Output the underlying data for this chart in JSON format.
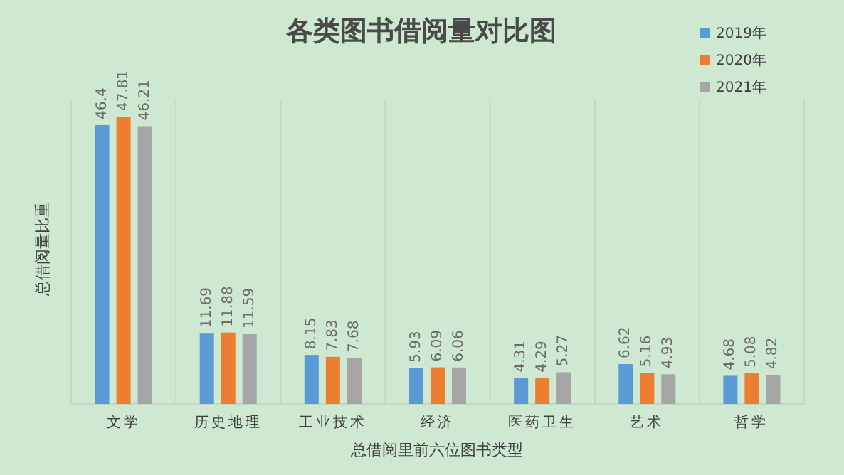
{
  "chart_data": {
    "type": "bar",
    "title": "各类图书借阅量对比图",
    "xlabel": "总借阅里前六位图书类型",
    "ylabel": "总借阅量比重",
    "categories": [
      "文学",
      "历史地理",
      "工业技术",
      "经济",
      "医药卫生",
      "艺术",
      "哲学"
    ],
    "series": [
      {
        "name": "2019年",
        "color": "#5b9bd5",
        "values": [
          46.4,
          11.69,
          8.15,
          5.93,
          4.31,
          6.62,
          4.68
        ]
      },
      {
        "name": "2020年",
        "color": "#ed7d31",
        "values": [
          47.81,
          11.88,
          7.83,
          6.09,
          4.29,
          5.16,
          5.08
        ]
      },
      {
        "name": "2021年",
        "color": "#a5a5a5",
        "values": [
          46.21,
          11.59,
          7.68,
          6.06,
          5.27,
          4.93,
          4.82
        ]
      }
    ],
    "data_labels": true,
    "legend": "top right"
  }
}
